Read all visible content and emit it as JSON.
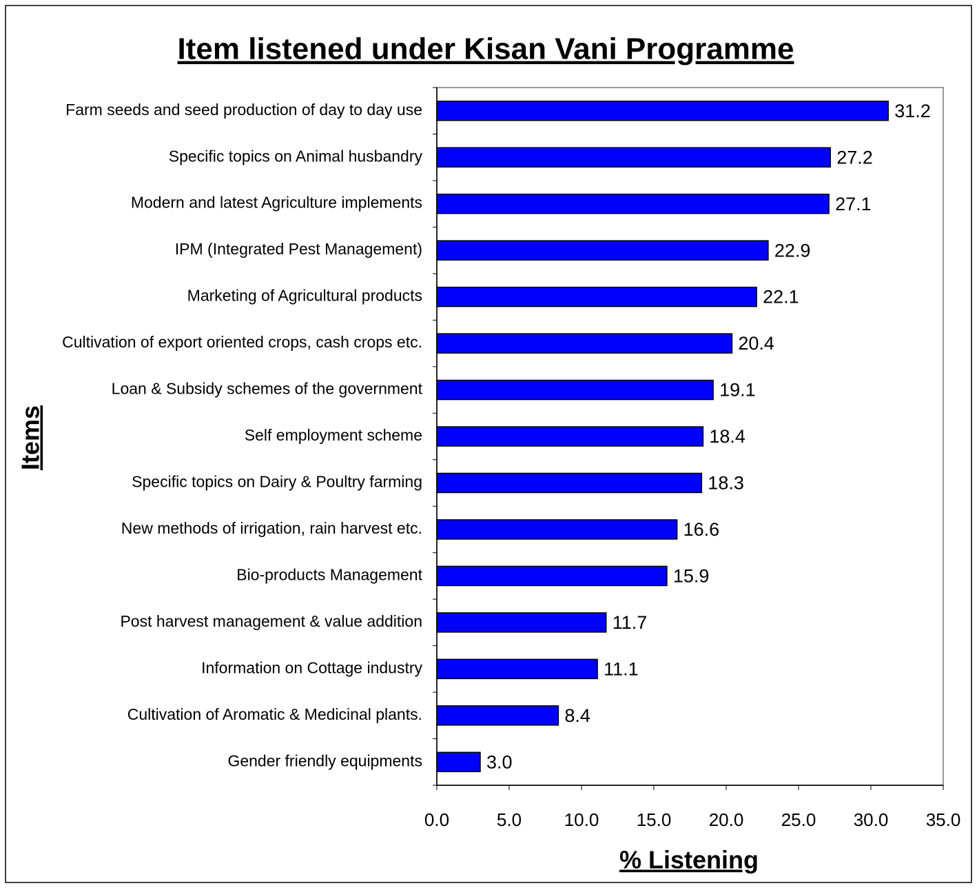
{
  "chart_data": {
    "type": "bar",
    "orientation": "horizontal",
    "title": "Item listened under Kisan Vani Programme",
    "x_label": "% Listening",
    "y_label": "Items",
    "categories": [
      "Farm seeds and seed production of day to day use",
      "Specific topics on Animal husbandry",
      "Modern and latest Agriculture implements",
      "IPM (Integrated Pest Management)",
      "Marketing of Agricultural products",
      "Cultivation of export oriented crops, cash crops etc.",
      "Loan & Subsidy schemes of the government",
      "Self employment scheme",
      "Specific topics on Dairy & Poultry farming",
      "New methods of irrigation, rain harvest etc.",
      "Bio-products Management",
      "Post harvest management & value addition",
      "Information on Cottage industry",
      "Cultivation of Aromatic & Medicinal plants.",
      "Gender friendly equipments"
    ],
    "values": [
      31.2,
      27.2,
      27.1,
      22.9,
      22.1,
      20.4,
      19.1,
      18.4,
      18.3,
      16.6,
      15.9,
      11.7,
      11.1,
      8.4,
      3.0
    ],
    "value_labels": [
      "31.2",
      "27.2",
      "27.1",
      "22.9",
      "22.1",
      "20.4",
      "19.1",
      "18.4",
      "18.3",
      "16.6",
      "15.9",
      "11.7",
      "11.1",
      "8.4",
      "3.0"
    ],
    "color": "#0000ff",
    "xlim": [
      0,
      35
    ],
    "xticks": [
      {
        "value": 0,
        "label": "0.0"
      },
      {
        "value": 5,
        "label": "5.0"
      },
      {
        "value": 10,
        "label": "10.0"
      },
      {
        "value": 15,
        "label": "15.0"
      },
      {
        "value": 20,
        "label": "20.0"
      },
      {
        "value": 25,
        "label": "25.0"
      },
      {
        "value": 30,
        "label": "30.0"
      },
      {
        "value": 35,
        "label": "35.0"
      }
    ],
    "grid": false
  }
}
